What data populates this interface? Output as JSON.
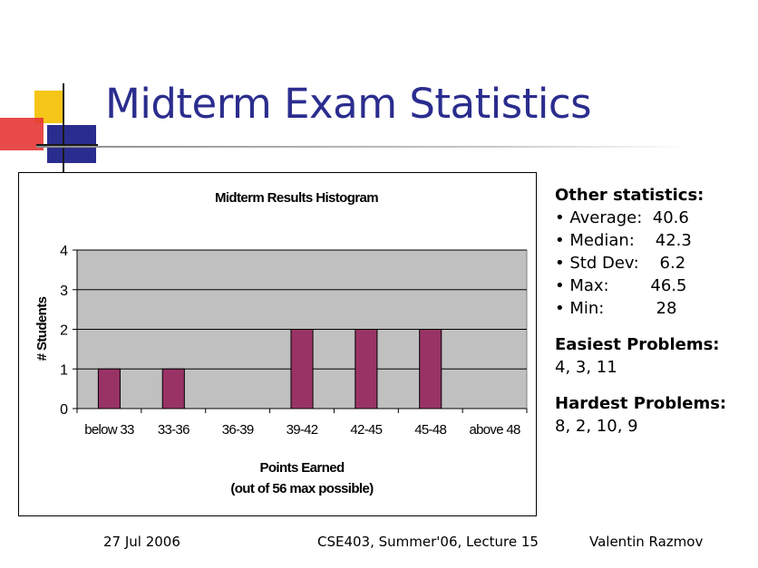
{
  "slide": {
    "title": "Midterm Exam Statistics"
  },
  "colors": {
    "title": "#2b2d8e",
    "bar": "#993366",
    "plot_bg": "#c0c0c0",
    "logo_yellow": "#f5c518",
    "logo_red": "#e63535",
    "logo_blue": "#2b2d8e"
  },
  "chart_data": {
    "type": "bar",
    "title": "Midterm Results Histogram",
    "xlabel": "Points Earned",
    "xlabel_sub": "(out of 56 max possible)",
    "ylabel": "# Students",
    "categories": [
      "below 33",
      "33-36",
      "36-39",
      "39-42",
      "42-45",
      "45-48",
      "above 48"
    ],
    "values": [
      1,
      1,
      0,
      2,
      2,
      2,
      0
    ],
    "yticks": [
      "0",
      "1",
      "2",
      "3",
      "4"
    ],
    "ylim": [
      0,
      4
    ],
    "grid": true,
    "legend": "none"
  },
  "stats": {
    "heading": "Other statistics:",
    "lines": [
      "• Average:  40.6",
      "• Median:    42.3",
      "• Std Dev:    6.2",
      "• Max:        46.5",
      "• Min:          28"
    ],
    "easiest_heading": "Easiest Problems:",
    "easiest_value": "4, 3, 11",
    "hardest_heading": "Hardest Problems:",
    "hardest_value": "8, 2, 10, 9"
  },
  "footer": {
    "date": "27 Jul 2006",
    "course": "CSE403, Summer'06, Lecture 15",
    "author": "Valentin Razmov"
  }
}
